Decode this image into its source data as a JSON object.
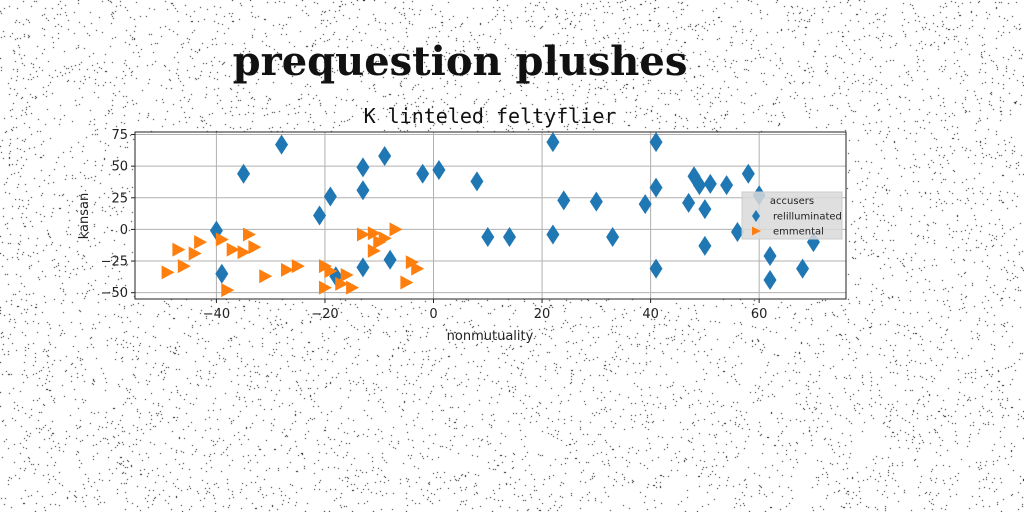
{
  "chart_data": {
    "type": "scatter",
    "suptitle": "prequestion plushes",
    "title": "K linteled feltyflier",
    "xlabel": "nonmutuality",
    "ylabel": "kansan",
    "xlim": [
      -55,
      76
    ],
    "ylim": [
      -55,
      77
    ],
    "xticks": [
      -40,
      -20,
      0,
      20,
      40,
      60
    ],
    "yticks": [
      75,
      50,
      25,
      0,
      -25,
      -50
    ],
    "xtick_labels": [
      "−40",
      "−20",
      "0",
      "20",
      "40",
      "60"
    ],
    "ytick_labels": [
      "75",
      "50",
      "25",
      "0",
      "−25",
      "−50"
    ],
    "grid": true,
    "legend": {
      "title": "accusers",
      "placement": "right"
    },
    "series": [
      {
        "name": "relilluminated",
        "marker": "diamond",
        "color": "#1f77b4",
        "points": [
          [
            -28,
            67
          ],
          [
            -35,
            44
          ],
          [
            -40,
            -1
          ],
          [
            -39,
            -35
          ],
          [
            -21,
            11
          ],
          [
            -19,
            26
          ],
          [
            -18,
            -37
          ],
          [
            -13,
            49
          ],
          [
            -13,
            31
          ],
          [
            -13,
            -30
          ],
          [
            -9,
            58
          ],
          [
            -8,
            -24
          ],
          [
            -2,
            44
          ],
          [
            1,
            47
          ],
          [
            8,
            38
          ],
          [
            10,
            -6
          ],
          [
            14,
            -6
          ],
          [
            22,
            69
          ],
          [
            22,
            -4
          ],
          [
            24,
            23
          ],
          [
            30,
            22
          ],
          [
            33,
            -6
          ],
          [
            39,
            20
          ],
          [
            41,
            69
          ],
          [
            41,
            33
          ],
          [
            41,
            -31
          ],
          [
            47,
            21
          ],
          [
            48,
            42
          ],
          [
            49,
            35
          ],
          [
            50,
            16
          ],
          [
            50,
            -13
          ],
          [
            51,
            36
          ],
          [
            54,
            35
          ],
          [
            56,
            -2
          ],
          [
            58,
            44
          ],
          [
            60,
            27
          ],
          [
            62,
            -21
          ],
          [
            62,
            -40
          ],
          [
            68,
            -31
          ],
          [
            70,
            -10
          ]
        ]
      },
      {
        "name": "emmental",
        "marker": "triangle-right",
        "color": "#ff7f0e",
        "points": [
          [
            -49,
            -34
          ],
          [
            -47,
            -16
          ],
          [
            -46,
            -29
          ],
          [
            -44,
            -19
          ],
          [
            -43,
            -10
          ],
          [
            -39,
            -8
          ],
          [
            -38,
            -48
          ],
          [
            -37,
            -16
          ],
          [
            -35,
            -18
          ],
          [
            -34,
            -4
          ],
          [
            -33,
            -14
          ],
          [
            -31,
            -37
          ],
          [
            -27,
            -32
          ],
          [
            -25,
            -29
          ],
          [
            -20,
            -29
          ],
          [
            -20,
            -46
          ],
          [
            -19,
            -33
          ],
          [
            -17,
            -43
          ],
          [
            -16,
            -36
          ],
          [
            -15,
            -46
          ],
          [
            -13,
            -4
          ],
          [
            -11,
            -3
          ],
          [
            -11,
            -17
          ],
          [
            -10,
            -10
          ],
          [
            -9,
            -7
          ],
          [
            -7,
            0
          ],
          [
            -5,
            -42
          ],
          [
            -4,
            -26
          ],
          [
            -3,
            -31
          ]
        ]
      }
    ]
  }
}
